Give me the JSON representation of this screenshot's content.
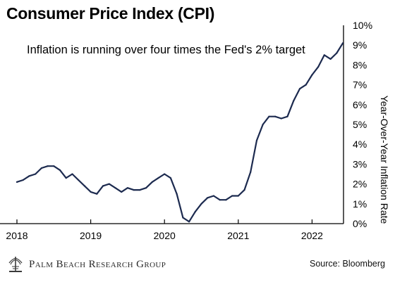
{
  "title": "Consumer Price Index (CPI)",
  "brand": "Palm Beach Research Group",
  "source": "Source: Bloomberg",
  "colors": {
    "line": "#1c2a4f",
    "axis": "#000000",
    "text": "#000000"
  },
  "chart_data": {
    "type": "line",
    "title": "Consumer Price Index (CPI)",
    "annotation": "Inflation is running over four times the Fed's 2% target",
    "ylabel": "Year-Over-Year Inflation Rate",
    "xlabel": "",
    "x_ticks": [
      "2018",
      "2019",
      "2020",
      "2021",
      "2022"
    ],
    "y_ticks": [
      "0%",
      "1%",
      "2%",
      "3%",
      "4%",
      "5%",
      "6%",
      "7%",
      "8%",
      "9%",
      "10%"
    ],
    "ylim": [
      0,
      10
    ],
    "xlim": [
      "2018-01",
      "2022-06"
    ],
    "y_axis_position": "right",
    "grid": false,
    "legend": "none",
    "series": [
      {
        "x": [
          "2018-01",
          "2018-02",
          "2018-03",
          "2018-04",
          "2018-05",
          "2018-06",
          "2018-07",
          "2018-08",
          "2018-09",
          "2018-10",
          "2018-11",
          "2018-12",
          "2019-01",
          "2019-02",
          "2019-03",
          "2019-04",
          "2019-05",
          "2019-06",
          "2019-07",
          "2019-08",
          "2019-09",
          "2019-10",
          "2019-11",
          "2019-12",
          "2020-01",
          "2020-02",
          "2020-03",
          "2020-04",
          "2020-05",
          "2020-06",
          "2020-07",
          "2020-08",
          "2020-09",
          "2020-10",
          "2020-11",
          "2020-12",
          "2021-01",
          "2021-02",
          "2021-03",
          "2021-04",
          "2021-05",
          "2021-06",
          "2021-07",
          "2021-08",
          "2021-09",
          "2021-10",
          "2021-11",
          "2021-12",
          "2022-01",
          "2022-02",
          "2022-03",
          "2022-04",
          "2022-05",
          "2022-06"
        ],
        "values": [
          2.1,
          2.2,
          2.4,
          2.5,
          2.8,
          2.9,
          2.9,
          2.7,
          2.3,
          2.5,
          2.2,
          1.9,
          1.6,
          1.5,
          1.9,
          2.0,
          1.8,
          1.6,
          1.8,
          1.7,
          1.7,
          1.8,
          2.1,
          2.3,
          2.5,
          2.3,
          1.5,
          0.3,
          0.1,
          0.6,
          1.0,
          1.3,
          1.4,
          1.2,
          1.2,
          1.4,
          1.4,
          1.7,
          2.6,
          4.2,
          5.0,
          5.4,
          5.4,
          5.3,
          5.4,
          6.2,
          6.8,
          7.0,
          7.5,
          7.9,
          8.5,
          8.3,
          8.6,
          9.1
        ]
      }
    ]
  }
}
